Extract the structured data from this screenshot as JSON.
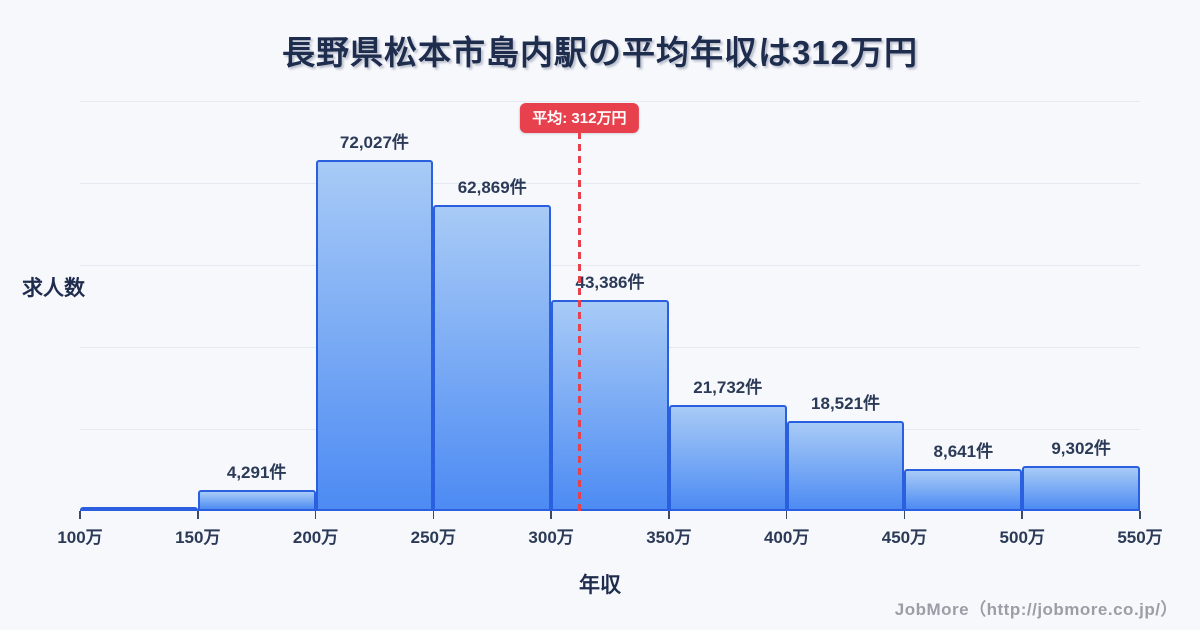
{
  "chart_data": {
    "type": "bar",
    "subtype": "histogram",
    "title": "長野県松本市島内駅の平均年収は312万円",
    "xlabel": "年収",
    "ylabel": "求人数",
    "x_tick_labels": [
      "100万",
      "150万",
      "200万",
      "250万",
      "300万",
      "350万",
      "400万",
      "450万",
      "500万",
      "550万"
    ],
    "bin_edges_man_yen": [
      100,
      150,
      200,
      250,
      300,
      350,
      400,
      450,
      500,
      550
    ],
    "values": [
      600,
      4291,
      72027,
      62869,
      43386,
      21732,
      18521,
      8641,
      9302
    ],
    "bar_labels": [
      "",
      "4,291件",
      "72,027件",
      "62,869件",
      "43,386件",
      "21,732件",
      "18,521件",
      "8,641件",
      "9,302件"
    ],
    "xlim": [
      100,
      550
    ],
    "ylim": [
      0,
      84100
    ],
    "gridline_count": 5,
    "grid": true,
    "legend_position": "none",
    "average": {
      "value": 312,
      "label": "平均: 312万円"
    }
  },
  "footer": {
    "credit": "JobMore（http://jobmore.co.jp/）"
  },
  "colors": {
    "background": "#f7f8fc",
    "title_navy": "#1e2c4e",
    "label_navy": "#2b3a57",
    "bar_border": "#2a60e0",
    "bar_fill_top": "#a8cbf6",
    "bar_fill_bottom": "#4d8bf3",
    "gridline": "#e5e9f1",
    "average_red": "#e8414e",
    "credit_gray": "#9b9ea6"
  }
}
